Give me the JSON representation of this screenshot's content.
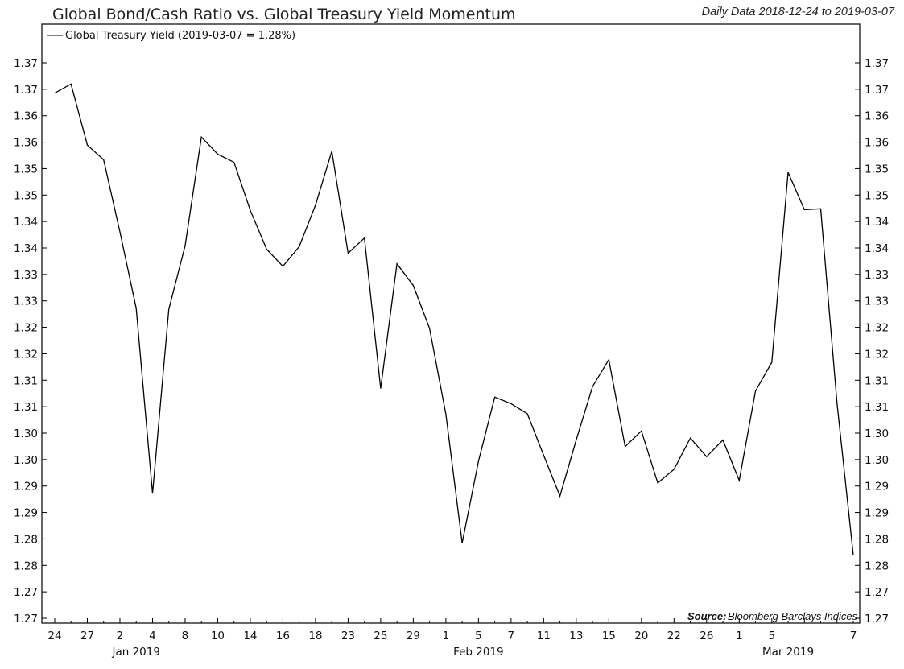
{
  "chart_data": {
    "type": "line",
    "title": "Global Bond/Cash Ratio vs. Global Treasury Yield Momentum",
    "subtitle": "Daily Data 2018-12-24 to 2019-03-07",
    "legend": {
      "entry": "Global Treasury Yield (2019-03-07 = 1.28%)",
      "placement": "top-left"
    },
    "source_label": "Source:",
    "source_text": "Bloomberg Barclays Indices",
    "grid": false,
    "ylim": [
      1.2675,
      1.3775
    ],
    "yticks": [
      "1.27",
      "1.27",
      "1.28",
      "1.28",
      "1.29",
      "1.29",
      "1.30",
      "1.30",
      "1.31",
      "1.31",
      "1.32",
      "1.32",
      "1.33",
      "1.33",
      "1.34",
      "1.34",
      "1.35",
      "1.35",
      "1.36",
      "1.36",
      "1.37",
      "1.37"
    ],
    "xticks": [
      "24",
      "27",
      "2",
      "4",
      "8",
      "10",
      "14",
      "16",
      "18",
      "23",
      "25",
      "29",
      "1",
      "5",
      "7",
      "11",
      "13",
      "15",
      "20",
      "22",
      "26",
      "1",
      "5",
      "7"
    ],
    "month_labels": [
      {
        "label": "Jan 2019",
        "x": "2019-01-02"
      },
      {
        "label": "Feb 2019",
        "x": "2019-02-01"
      },
      {
        "label": "Mar 2019",
        "x": "2019-03-01"
      }
    ],
    "series": [
      {
        "name": "Global Treasury Yield",
        "x": [
          "2018-12-24",
          "2018-12-26",
          "2018-12-27",
          "2018-12-28",
          "2018-12-31",
          "2019-01-02",
          "2019-01-03",
          "2019-01-04",
          "2019-01-07",
          "2019-01-08",
          "2019-01-09",
          "2019-01-10",
          "2019-01-11",
          "2019-01-14",
          "2019-01-15",
          "2019-01-16",
          "2019-01-17",
          "2019-01-18",
          "2019-01-22",
          "2019-01-23",
          "2019-01-24",
          "2019-01-25",
          "2019-01-28",
          "2019-01-29",
          "2019-01-30",
          "2019-01-31",
          "2019-02-01",
          "2019-02-04",
          "2019-02-05",
          "2019-02-06",
          "2019-02-07",
          "2019-02-08",
          "2019-02-11",
          "2019-02-12",
          "2019-02-13",
          "2019-02-14",
          "2019-02-15",
          "2019-02-19",
          "2019-02-20",
          "2019-02-21",
          "2019-02-22",
          "2019-02-25",
          "2019-02-26",
          "2019-02-27",
          "2019-02-28",
          "2019-03-01",
          "2019-03-04",
          "2019-03-05",
          "2019-03-06",
          "2019-03-07"
        ],
        "values": [
          1.3715,
          1.3733,
          1.3612,
          1.3583,
          1.344,
          1.3289,
          1.2922,
          1.3287,
          1.3413,
          1.3628,
          1.3594,
          1.3578,
          1.3483,
          1.3406,
          1.3372,
          1.3411,
          1.3493,
          1.36,
          1.3398,
          1.3428,
          1.313,
          1.3377,
          1.3334,
          1.3249,
          1.3079,
          1.2824,
          1.2986,
          1.3113,
          1.31,
          1.308,
          1.2998,
          1.2917,
          1.3028,
          1.3134,
          1.3187,
          1.3015,
          1.3046,
          1.2943,
          1.297,
          1.3032,
          1.2995,
          1.3028,
          1.2948,
          1.3125,
          1.3182,
          1.3558,
          1.3484,
          1.3486,
          1.3101,
          1.28
        ]
      }
    ]
  }
}
